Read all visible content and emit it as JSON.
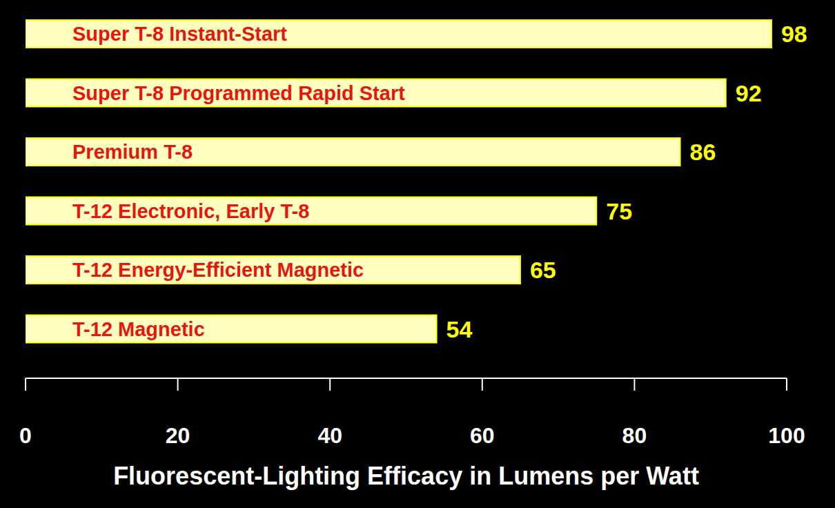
{
  "chart_data": {
    "type": "bar",
    "orientation": "horizontal",
    "categories": [
      "Super T-8 Instant-Start",
      "Super T-8 Programmed Rapid Start",
      "Premium T-8",
      "T-12 Electronic, Early T-8",
      "T-12 Energy-Efficient Magnetic",
      "T-12 Magnetic"
    ],
    "values": [
      98,
      92,
      86,
      75,
      65,
      54
    ],
    "color": "#ffffc0",
    "xlim": [
      0,
      100
    ],
    "xticks": [
      0,
      20,
      40,
      60,
      80,
      100
    ],
    "x_label": "Fluorescent-Lighting Efficacy in Lumens per Watt",
    "data_labels": true,
    "grid": false
  }
}
